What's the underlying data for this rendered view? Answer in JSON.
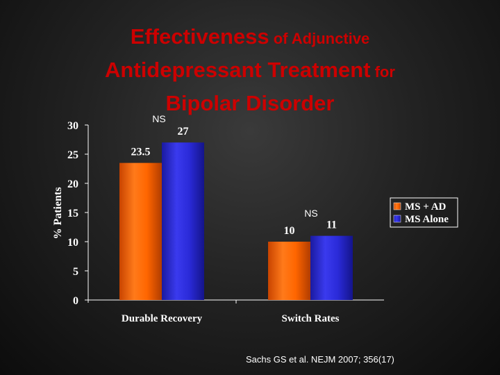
{
  "slide": {
    "title_line1_big": "Effectiveness",
    "title_line1_small": " of Adjunctive",
    "title_line2_big": "Antidepressant Treatment",
    "title_line2_small": " for",
    "title_line3_big": "Bipolar Disorder",
    "citation": "Sachs GS et al. NEJM 2007; 356(17)"
  },
  "colors": {
    "title": "#cc0000",
    "series_ms_ad": "#ff6600",
    "series_ms_alone": "#2a2ad8",
    "text": "#ffffff"
  },
  "chart_data": {
    "type": "bar",
    "title": "",
    "categories": [
      "Durable Recovery",
      "Switch Rates"
    ],
    "series": [
      {
        "name": "MS + AD",
        "values": [
          23.5,
          10
        ],
        "labels": [
          "23.5",
          "10"
        ]
      },
      {
        "name": "MS Alone",
        "values": [
          27,
          11
        ],
        "labels": [
          "27",
          "11"
        ]
      }
    ],
    "xlabel": "",
    "ylabel": "% Patients",
    "ylim": [
      0,
      30
    ],
    "yticks": [
      0,
      5,
      10,
      15,
      20,
      25,
      30
    ],
    "grid": false,
    "legend_position": "right",
    "annotations": [
      "NS",
      "NS"
    ]
  }
}
